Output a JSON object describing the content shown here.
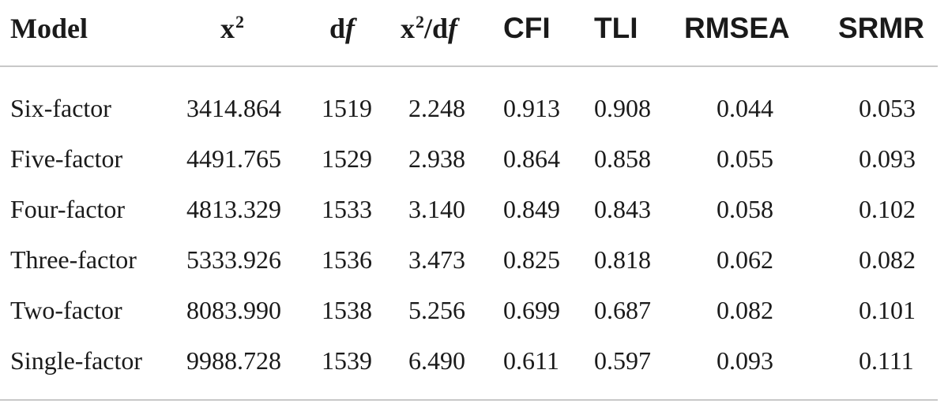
{
  "table": {
    "headers": {
      "model": "Model",
      "chi2_base": "x",
      "chi2_sup": "2",
      "df_base": "d",
      "df_italic": "f",
      "ratio_base": "x",
      "ratio_sup": "2",
      "ratio_slash": "/d",
      "ratio_italic": "f",
      "cfi": "CFI",
      "tli": "TLI",
      "rmsea": "RMSEA",
      "srmr": "SRMR"
    },
    "rows": [
      {
        "model": "Six-factor",
        "chi2": "3414.864",
        "df": "1519",
        "ratio": "2.248",
        "cfi": "0.913",
        "tli": "0.908",
        "rmsea": "0.044",
        "srmr": "0.053"
      },
      {
        "model": "Five-factor",
        "chi2": "4491.765",
        "df": "1529",
        "ratio": "2.938",
        "cfi": "0.864",
        "tli": "0.858",
        "rmsea": "0.055",
        "srmr": "0.093"
      },
      {
        "model": "Four-factor",
        "chi2": "4813.329",
        "df": "1533",
        "ratio": "3.140",
        "cfi": "0.849",
        "tli": "0.843",
        "rmsea": "0.058",
        "srmr": "0.102"
      },
      {
        "model": "Three-factor",
        "chi2": "5333.926",
        "df": "1536",
        "ratio": "3.473",
        "cfi": "0.825",
        "tli": "0.818",
        "rmsea": "0.062",
        "srmr": "0.082"
      },
      {
        "model": "Two-factor",
        "chi2": "8083.990",
        "df": "1538",
        "ratio": "5.256",
        "cfi": "0.699",
        "tli": "0.687",
        "rmsea": "0.082",
        "srmr": "0.101"
      },
      {
        "model": "Single-factor",
        "chi2": "9988.728",
        "df": "1539",
        "ratio": "6.490",
        "cfi": "0.611",
        "tli": "0.597",
        "rmsea": "0.093",
        "srmr": "0.111"
      }
    ]
  }
}
